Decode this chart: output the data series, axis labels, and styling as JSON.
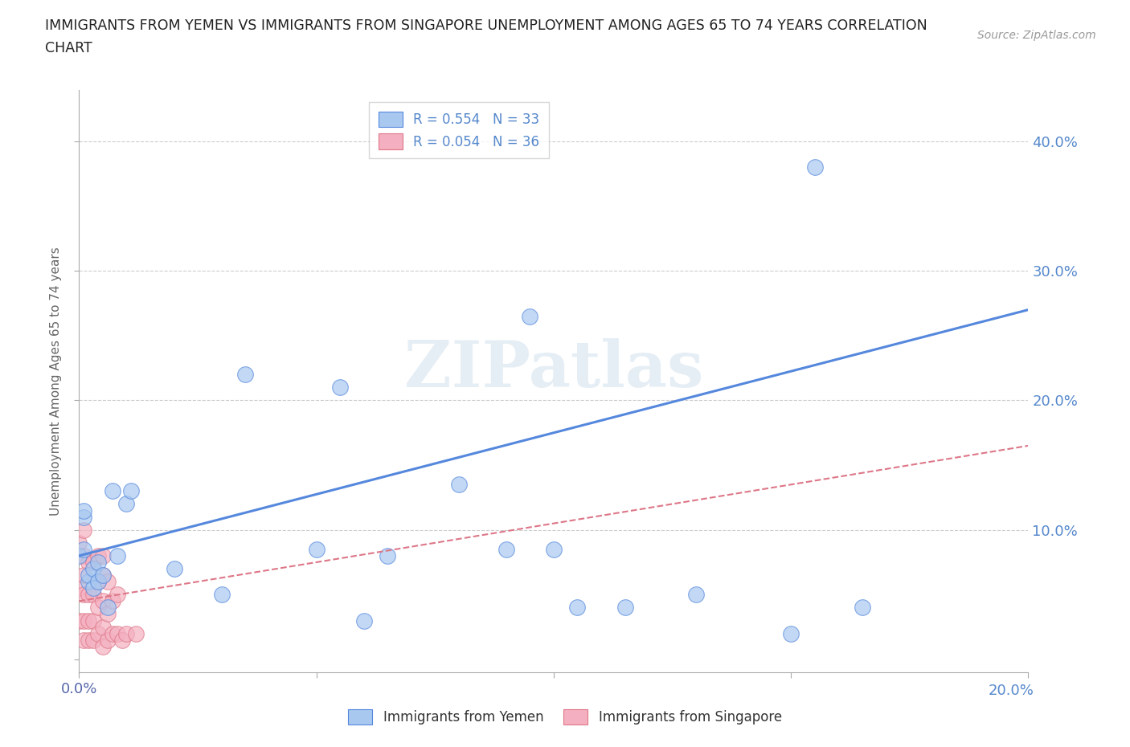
{
  "title_line1": "IMMIGRANTS FROM YEMEN VS IMMIGRANTS FROM SINGAPORE UNEMPLOYMENT AMONG AGES 65 TO 74 YEARS CORRELATION",
  "title_line2": "CHART",
  "source": "Source: ZipAtlas.com",
  "ylabel": "Unemployment Among Ages 65 to 74 years",
  "xlim": [
    0,
    0.2
  ],
  "ylim": [
    -0.01,
    0.44
  ],
  "yticks": [
    0.0,
    0.1,
    0.2,
    0.3,
    0.4
  ],
  "xticks": [
    0.0,
    0.05,
    0.1,
    0.15,
    0.2
  ],
  "xtick_labels_left": [
    "0.0%",
    "",
    "",
    "",
    ""
  ],
  "xtick_labels_right": [
    "",
    "",
    "",
    "",
    "20.0%"
  ],
  "ytick_labels_right": [
    "",
    "10.0%",
    "20.0%",
    "30.0%",
    "40.0%"
  ],
  "yemen_color": "#a8c8f0",
  "singapore_color": "#f4b0c0",
  "yemen_R": 0.554,
  "yemen_N": 33,
  "singapore_R": 0.054,
  "singapore_N": 36,
  "yemen_line_color": "#5588dd",
  "singapore_line_color": "#dd7788",
  "watermark": "ZIPatlas",
  "background_color": "#ffffff",
  "yemen_x": [
    0.0,
    0.001,
    0.001,
    0.001,
    0.002,
    0.002,
    0.003,
    0.003,
    0.004,
    0.004,
    0.005,
    0.006,
    0.007,
    0.008,
    0.01,
    0.011,
    0.02,
    0.03,
    0.035,
    0.05,
    0.055,
    0.06,
    0.065,
    0.08,
    0.09,
    0.095,
    0.1,
    0.105,
    0.115,
    0.13,
    0.15,
    0.155,
    0.165
  ],
  "yemen_y": [
    0.08,
    0.085,
    0.11,
    0.115,
    0.06,
    0.065,
    0.07,
    0.055,
    0.06,
    0.075,
    0.065,
    0.04,
    0.13,
    0.08,
    0.12,
    0.13,
    0.07,
    0.05,
    0.22,
    0.085,
    0.21,
    0.03,
    0.08,
    0.135,
    0.085,
    0.265,
    0.085,
    0.04,
    0.04,
    0.05,
    0.02,
    0.38,
    0.04
  ],
  "singapore_x": [
    0.0,
    0.0,
    0.0,
    0.001,
    0.001,
    0.001,
    0.001,
    0.001,
    0.001,
    0.002,
    0.002,
    0.002,
    0.002,
    0.003,
    0.003,
    0.003,
    0.003,
    0.004,
    0.004,
    0.004,
    0.004,
    0.005,
    0.005,
    0.005,
    0.005,
    0.005,
    0.006,
    0.006,
    0.006,
    0.007,
    0.007,
    0.008,
    0.008,
    0.009,
    0.01,
    0.012
  ],
  "singapore_y": [
    0.03,
    0.055,
    0.09,
    0.015,
    0.03,
    0.05,
    0.065,
    0.08,
    0.1,
    0.015,
    0.03,
    0.05,
    0.075,
    0.015,
    0.03,
    0.05,
    0.075,
    0.02,
    0.04,
    0.06,
    0.08,
    0.01,
    0.025,
    0.045,
    0.065,
    0.08,
    0.015,
    0.035,
    0.06,
    0.02,
    0.045,
    0.02,
    0.05,
    0.015,
    0.02,
    0.02
  ],
  "yemen_trend": [
    0.08,
    0.27
  ],
  "singapore_trend": [
    0.045,
    0.165
  ]
}
